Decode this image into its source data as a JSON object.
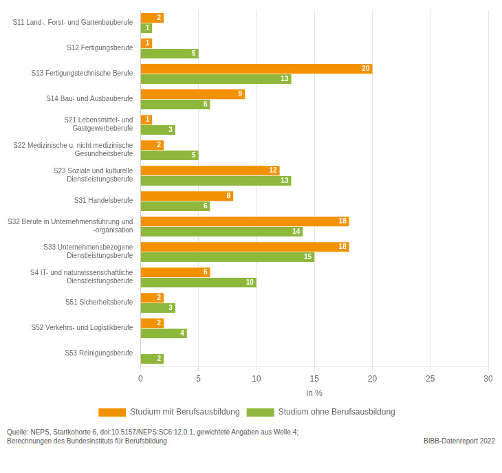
{
  "chart_data": {
    "type": "bar",
    "orientation": "horizontal",
    "categories": [
      "S11 Land-, Forst- und Gartenbauberufe",
      "S12 Fertigungsberufe",
      "S13 Fertigungstechnische Berufe",
      "S14 Bau- und Ausbauberufe",
      "S21 Lebensmittel- und\nGastgewerbeberufe",
      "S22 Medizinische u. nicht medizinische\nGesundheitsberufe",
      "S23 Soziale und kulturelle\nDienstleistungsberufe",
      "S31 Handelsberufe",
      "S32 Berufe in Unternehmensführung und\n-organisation",
      "S33 Unternehmensbezogene\nDienstleistungsberufe",
      "S4 IT- und naturwissenschaftliche\nDienstleistungsberufe",
      "S51 Sicherheitsberufe",
      "S52 Verkehrs- und Logistikberufe",
      "S53 Reinigungsberufe"
    ],
    "series": [
      {
        "name": "Studium mit Berufsausbildung",
        "color": "#F39200",
        "values": [
          2,
          1,
          20,
          9,
          1,
          2,
          12,
          8,
          18,
          18,
          6,
          2,
          2,
          0
        ]
      },
      {
        "name": "Studium ohne Berufsausbildung",
        "color": "#8DB83B",
        "values": [
          1,
          5,
          13,
          6,
          3,
          5,
          13,
          6,
          14,
          15,
          10,
          3,
          4,
          2
        ]
      }
    ],
    "xlabel": "in %",
    "xlim": [
      0,
      30
    ],
    "xticks": [
      0,
      5,
      10,
      15,
      20,
      25,
      30
    ],
    "grid": true,
    "legend": "bottom",
    "data_labels": true,
    "annotations": [
      "Quelle: NEPS, Startkohorte 6, doi:10.5157/NEPS:SC6:12.0.1, gewichtete Angaben aus Welle 4;\nBerechnungen des Bundesinstituts für Berufsbildung",
      "BIBB-Datenreport 2022"
    ]
  }
}
